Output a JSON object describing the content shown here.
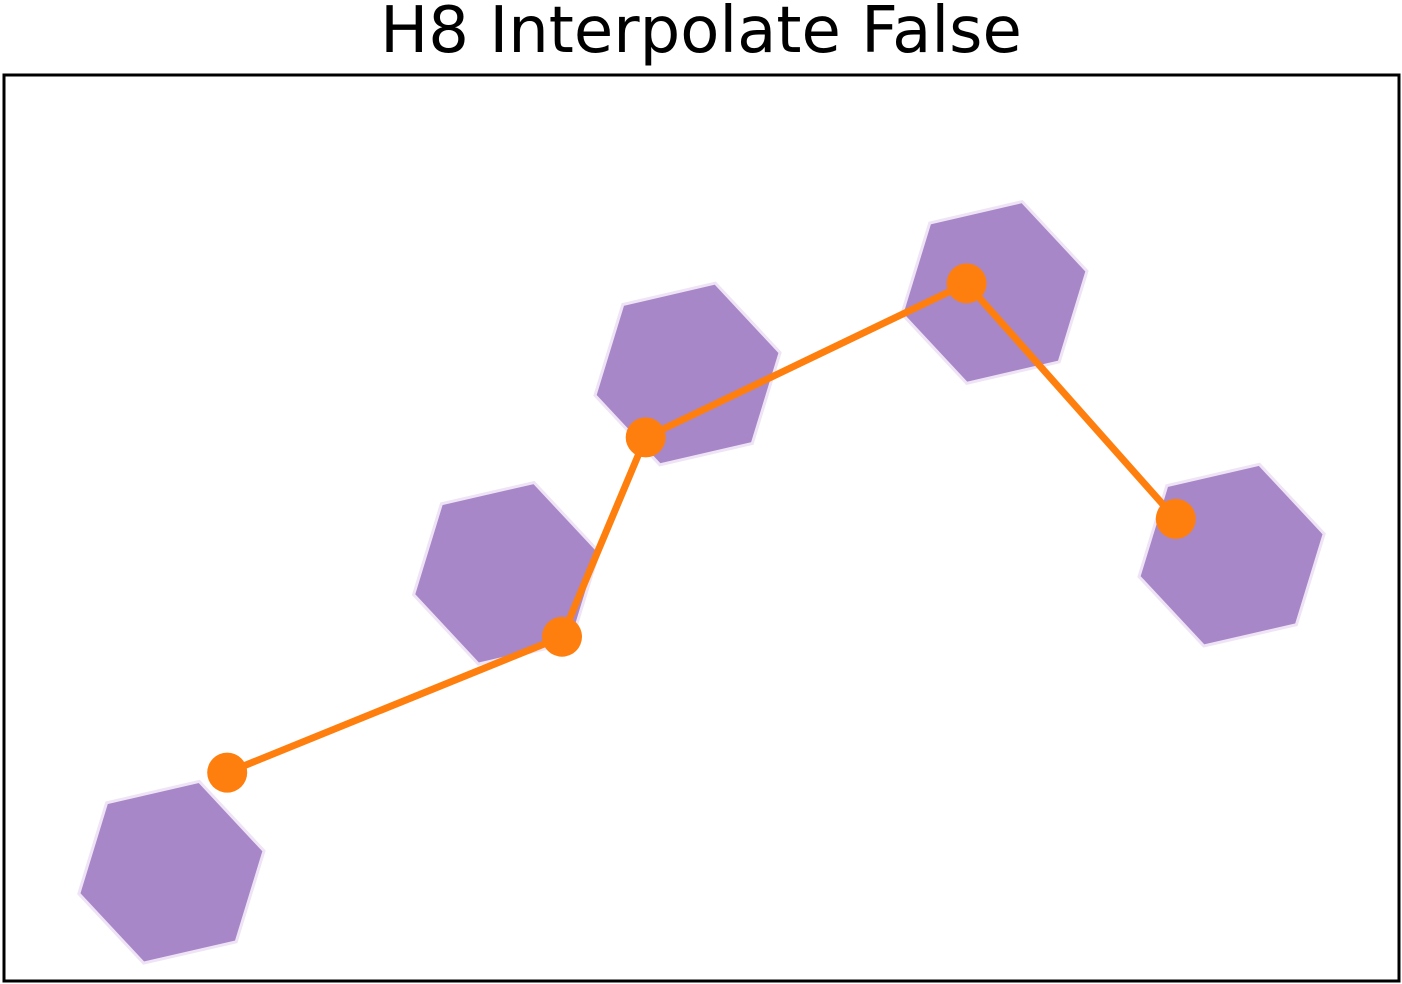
{
  "chart_data": {
    "type": "line",
    "title": "H8 Interpolate False",
    "xlabel": "",
    "ylabel": "",
    "grid": false,
    "axes_visible": false,
    "xlim": [
      0,
      10
    ],
    "ylim": [
      0,
      10
    ],
    "series": [
      {
        "kind": "hexbin",
        "color": "#a887c9",
        "edge_color": "#efe4f5",
        "x": [
          1.2,
          3.6,
          4.9,
          7.1,
          8.8
        ],
        "y": [
          1.2,
          4.5,
          6.7,
          7.6,
          4.7
        ]
      },
      {
        "kind": "line",
        "color": "#ff7f0e",
        "marker": "circle",
        "x": [
          1.6,
          4.0,
          4.6,
          6.9,
          8.4
        ],
        "y": [
          2.3,
          3.8,
          6.0,
          7.7,
          5.1
        ]
      }
    ]
  }
}
